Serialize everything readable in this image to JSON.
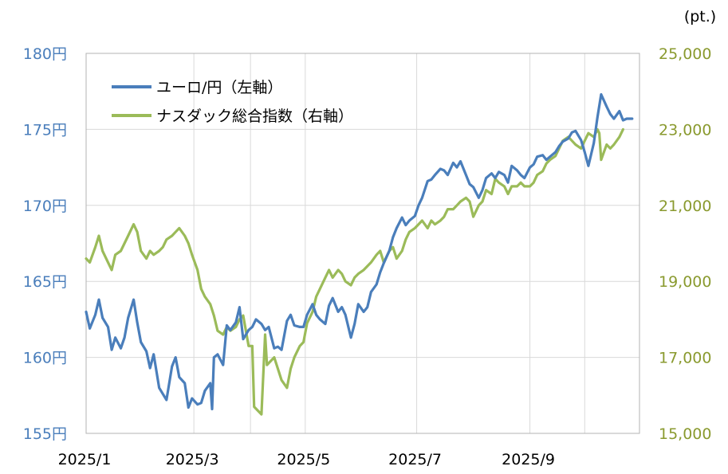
{
  "chart_data": {
    "type": "line",
    "right_unit_label": "(pt.)",
    "left_axis": {
      "min": 155,
      "max": 180,
      "step": 5,
      "tick_labels": [
        "155円",
        "160円",
        "165円",
        "170円",
        "175円",
        "180円"
      ]
    },
    "right_axis": {
      "min": 15000,
      "max": 25000,
      "step": 2000,
      "tick_labels": [
        "15,000",
        "17,000",
        "19,000",
        "21,000",
        "23,000",
        "25,000"
      ]
    },
    "x_axis": {
      "start": "2025-01-01",
      "end": "2025-10-31",
      "tick_labels": [
        "2025/1",
        "2025/3",
        "2025/5",
        "2025/7",
        "2025/9"
      ],
      "gridlines": [
        "2025-01-01",
        "2025-03-01",
        "2025-04-01",
        "2025-05-01",
        "2025-07-01",
        "2025-09-01",
        "2025-10-01",
        "2025-10-31"
      ]
    },
    "grid": true,
    "legend_position": "top-left",
    "series": [
      {
        "name": "ユーロ/円（左軸）",
        "axis": "left",
        "color": "#4a7ebb",
        "points": [
          [
            "2025-01-01",
            163.0
          ],
          [
            "2025-01-03",
            161.9
          ],
          [
            "2025-01-06",
            162.8
          ],
          [
            "2025-01-08",
            163.8
          ],
          [
            "2025-01-10",
            162.6
          ],
          [
            "2025-01-13",
            162.0
          ],
          [
            "2025-01-15",
            160.5
          ],
          [
            "2025-01-17",
            161.3
          ],
          [
            "2025-01-20",
            160.6
          ],
          [
            "2025-01-22",
            161.3
          ],
          [
            "2025-01-24",
            162.6
          ],
          [
            "2025-01-27",
            163.8
          ],
          [
            "2025-01-29",
            162.3
          ],
          [
            "2025-01-31",
            161.0
          ],
          [
            "2025-02-03",
            160.4
          ],
          [
            "2025-02-05",
            159.3
          ],
          [
            "2025-02-07",
            160.2
          ],
          [
            "2025-02-10",
            158.0
          ],
          [
            "2025-02-12",
            157.6
          ],
          [
            "2025-02-14",
            157.2
          ],
          [
            "2025-02-17",
            159.4
          ],
          [
            "2025-02-19",
            160.0
          ],
          [
            "2025-02-21",
            158.7
          ],
          [
            "2025-02-24",
            158.3
          ],
          [
            "2025-02-26",
            156.7
          ],
          [
            "2025-02-28",
            157.3
          ],
          [
            "2025-03-03",
            156.9
          ],
          [
            "2025-03-05",
            157.0
          ],
          [
            "2025-03-07",
            157.8
          ],
          [
            "2025-03-10",
            158.3
          ],
          [
            "2025-03-11",
            156.6
          ],
          [
            "2025-03-12",
            160.0
          ],
          [
            "2025-03-14",
            160.2
          ],
          [
            "2025-03-17",
            159.5
          ],
          [
            "2025-03-19",
            162.1
          ],
          [
            "2025-03-21",
            161.8
          ],
          [
            "2025-03-24",
            162.3
          ],
          [
            "2025-03-26",
            163.3
          ],
          [
            "2025-03-28",
            161.2
          ],
          [
            "2025-03-31",
            161.8
          ],
          [
            "2025-04-02",
            162.0
          ],
          [
            "2025-04-04",
            162.5
          ],
          [
            "2025-04-07",
            162.2
          ],
          [
            "2025-04-09",
            161.8
          ],
          [
            "2025-04-11",
            162.0
          ],
          [
            "2025-04-14",
            160.6
          ],
          [
            "2025-04-16",
            160.7
          ],
          [
            "2025-04-18",
            160.5
          ],
          [
            "2025-04-21",
            162.4
          ],
          [
            "2025-04-23",
            162.8
          ],
          [
            "2025-04-25",
            162.1
          ],
          [
            "2025-04-28",
            162.0
          ],
          [
            "2025-04-30",
            162.0
          ],
          [
            "2025-05-02",
            162.8
          ],
          [
            "2025-05-05",
            163.5
          ],
          [
            "2025-05-07",
            162.8
          ],
          [
            "2025-05-09",
            162.5
          ],
          [
            "2025-05-12",
            162.2
          ],
          [
            "2025-05-14",
            163.4
          ],
          [
            "2025-05-16",
            163.9
          ],
          [
            "2025-05-19",
            163.0
          ],
          [
            "2025-05-21",
            163.3
          ],
          [
            "2025-05-23",
            162.8
          ],
          [
            "2025-05-26",
            161.3
          ],
          [
            "2025-05-28",
            162.2
          ],
          [
            "2025-05-30",
            163.5
          ],
          [
            "2025-06-02",
            163.0
          ],
          [
            "2025-06-04",
            163.3
          ],
          [
            "2025-06-06",
            164.3
          ],
          [
            "2025-06-09",
            164.8
          ],
          [
            "2025-06-11",
            165.6
          ],
          [
            "2025-06-13",
            166.2
          ],
          [
            "2025-06-16",
            167.0
          ],
          [
            "2025-06-18",
            167.9
          ],
          [
            "2025-06-20",
            168.5
          ],
          [
            "2025-06-23",
            169.2
          ],
          [
            "2025-06-25",
            168.7
          ],
          [
            "2025-06-27",
            169.0
          ],
          [
            "2025-06-30",
            169.3
          ],
          [
            "2025-07-02",
            170.0
          ],
          [
            "2025-07-04",
            170.5
          ],
          [
            "2025-07-07",
            171.6
          ],
          [
            "2025-07-09",
            171.7
          ],
          [
            "2025-07-11",
            172.0
          ],
          [
            "2025-07-14",
            172.4
          ],
          [
            "2025-07-16",
            172.3
          ],
          [
            "2025-07-18",
            172.0
          ],
          [
            "2025-07-21",
            172.8
          ],
          [
            "2025-07-23",
            172.5
          ],
          [
            "2025-07-25",
            172.9
          ],
          [
            "2025-07-28",
            172.0
          ],
          [
            "2025-07-30",
            171.4
          ],
          [
            "2025-08-01",
            171.2
          ],
          [
            "2025-08-04",
            170.5
          ],
          [
            "2025-08-06",
            171.0
          ],
          [
            "2025-08-08",
            171.8
          ],
          [
            "2025-08-11",
            172.1
          ],
          [
            "2025-08-13",
            171.8
          ],
          [
            "2025-08-15",
            172.2
          ],
          [
            "2025-08-18",
            172.0
          ],
          [
            "2025-08-20",
            171.5
          ],
          [
            "2025-08-22",
            172.6
          ],
          [
            "2025-08-25",
            172.3
          ],
          [
            "2025-08-27",
            172.0
          ],
          [
            "2025-08-29",
            171.8
          ],
          [
            "2025-09-01",
            172.5
          ],
          [
            "2025-09-03",
            172.7
          ],
          [
            "2025-09-05",
            173.2
          ],
          [
            "2025-09-08",
            173.3
          ],
          [
            "2025-09-10",
            173.0
          ],
          [
            "2025-09-12",
            173.2
          ],
          [
            "2025-09-15",
            173.5
          ],
          [
            "2025-09-17",
            173.9
          ],
          [
            "2025-09-19",
            174.2
          ],
          [
            "2025-09-22",
            174.4
          ],
          [
            "2025-09-24",
            174.8
          ],
          [
            "2025-09-26",
            174.9
          ],
          [
            "2025-09-29",
            174.3
          ],
          [
            "2025-10-01",
            173.5
          ],
          [
            "2025-10-03",
            172.6
          ],
          [
            "2025-10-06",
            174.1
          ],
          [
            "2025-10-08",
            175.8
          ],
          [
            "2025-10-10",
            177.3
          ],
          [
            "2025-10-13",
            176.5
          ],
          [
            "2025-10-15",
            176.0
          ],
          [
            "2025-10-17",
            175.7
          ],
          [
            "2025-10-20",
            176.2
          ],
          [
            "2025-10-22",
            175.6
          ],
          [
            "2025-10-24",
            175.7
          ],
          [
            "2025-10-27",
            175.7
          ]
        ]
      },
      {
        "name": "ナスダック総合指数（右軸）",
        "axis": "right",
        "color": "#9bbb59",
        "points": [
          [
            "2025-01-01",
            19600
          ],
          [
            "2025-01-03",
            19500
          ],
          [
            "2025-01-06",
            19900
          ],
          [
            "2025-01-08",
            20200
          ],
          [
            "2025-01-10",
            19800
          ],
          [
            "2025-01-13",
            19500
          ],
          [
            "2025-01-15",
            19300
          ],
          [
            "2025-01-17",
            19700
          ],
          [
            "2025-01-20",
            19800
          ],
          [
            "2025-01-22",
            20000
          ],
          [
            "2025-01-24",
            20200
          ],
          [
            "2025-01-27",
            20500
          ],
          [
            "2025-01-29",
            20300
          ],
          [
            "2025-01-31",
            19800
          ],
          [
            "2025-02-03",
            19600
          ],
          [
            "2025-02-05",
            19800
          ],
          [
            "2025-02-07",
            19700
          ],
          [
            "2025-02-10",
            19800
          ],
          [
            "2025-02-12",
            19900
          ],
          [
            "2025-02-14",
            20100
          ],
          [
            "2025-02-17",
            20200
          ],
          [
            "2025-02-19",
            20300
          ],
          [
            "2025-02-21",
            20400
          ],
          [
            "2025-02-24",
            20200
          ],
          [
            "2025-02-26",
            20000
          ],
          [
            "2025-02-28",
            19700
          ],
          [
            "2025-03-03",
            19300
          ],
          [
            "2025-03-05",
            18800
          ],
          [
            "2025-03-07",
            18600
          ],
          [
            "2025-03-10",
            18400
          ],
          [
            "2025-03-12",
            18100
          ],
          [
            "2025-03-14",
            17700
          ],
          [
            "2025-03-17",
            17600
          ],
          [
            "2025-03-19",
            17800
          ],
          [
            "2025-03-21",
            17700
          ],
          [
            "2025-03-24",
            17800
          ],
          [
            "2025-03-26",
            18000
          ],
          [
            "2025-03-28",
            18100
          ],
          [
            "2025-03-31",
            17300
          ],
          [
            "2025-04-02",
            17300
          ],
          [
            "2025-04-03",
            15700
          ],
          [
            "2025-04-07",
            15500
          ],
          [
            "2025-04-09",
            17600
          ],
          [
            "2025-04-10",
            16800
          ],
          [
            "2025-04-14",
            17000
          ],
          [
            "2025-04-16",
            16700
          ],
          [
            "2025-04-18",
            16400
          ],
          [
            "2025-04-21",
            16200
          ],
          [
            "2025-04-23",
            16700
          ],
          [
            "2025-04-25",
            17000
          ],
          [
            "2025-04-28",
            17300
          ],
          [
            "2025-04-30",
            17400
          ],
          [
            "2025-05-02",
            17900
          ],
          [
            "2025-05-05",
            18200
          ],
          [
            "2025-05-07",
            18600
          ],
          [
            "2025-05-09",
            18800
          ],
          [
            "2025-05-12",
            19100
          ],
          [
            "2025-05-14",
            19300
          ],
          [
            "2025-05-16",
            19100
          ],
          [
            "2025-05-19",
            19300
          ],
          [
            "2025-05-21",
            19200
          ],
          [
            "2025-05-23",
            19000
          ],
          [
            "2025-05-26",
            18900
          ],
          [
            "2025-05-28",
            19100
          ],
          [
            "2025-05-30",
            19200
          ],
          [
            "2025-06-02",
            19300
          ],
          [
            "2025-06-04",
            19400
          ],
          [
            "2025-06-06",
            19500
          ],
          [
            "2025-06-09",
            19700
          ],
          [
            "2025-06-11",
            19800
          ],
          [
            "2025-06-13",
            19500
          ],
          [
            "2025-06-16",
            19800
          ],
          [
            "2025-06-18",
            19900
          ],
          [
            "2025-06-20",
            19600
          ],
          [
            "2025-06-23",
            19800
          ],
          [
            "2025-06-25",
            20100
          ],
          [
            "2025-06-27",
            20300
          ],
          [
            "2025-06-30",
            20400
          ],
          [
            "2025-07-02",
            20500
          ],
          [
            "2025-07-04",
            20600
          ],
          [
            "2025-07-07",
            20400
          ],
          [
            "2025-07-09",
            20600
          ],
          [
            "2025-07-11",
            20500
          ],
          [
            "2025-07-14",
            20600
          ],
          [
            "2025-07-16",
            20700
          ],
          [
            "2025-07-18",
            20900
          ],
          [
            "2025-07-21",
            20900
          ],
          [
            "2025-07-23",
            21000
          ],
          [
            "2025-07-25",
            21100
          ],
          [
            "2025-07-28",
            21200
          ],
          [
            "2025-07-30",
            21100
          ],
          [
            "2025-08-01",
            20700
          ],
          [
            "2025-08-04",
            21000
          ],
          [
            "2025-08-06",
            21100
          ],
          [
            "2025-08-08",
            21400
          ],
          [
            "2025-08-11",
            21300
          ],
          [
            "2025-08-13",
            21700
          ],
          [
            "2025-08-15",
            21600
          ],
          [
            "2025-08-18",
            21500
          ],
          [
            "2025-08-20",
            21300
          ],
          [
            "2025-08-22",
            21500
          ],
          [
            "2025-08-25",
            21500
          ],
          [
            "2025-08-27",
            21600
          ],
          [
            "2025-08-29",
            21500
          ],
          [
            "2025-09-01",
            21500
          ],
          [
            "2025-09-03",
            21600
          ],
          [
            "2025-09-05",
            21800
          ],
          [
            "2025-09-08",
            21900
          ],
          [
            "2025-09-10",
            22100
          ],
          [
            "2025-09-12",
            22200
          ],
          [
            "2025-09-15",
            22300
          ],
          [
            "2025-09-17",
            22500
          ],
          [
            "2025-09-19",
            22700
          ],
          [
            "2025-09-22",
            22800
          ],
          [
            "2025-09-24",
            22700
          ],
          [
            "2025-09-26",
            22600
          ],
          [
            "2025-09-29",
            22500
          ],
          [
            "2025-10-01",
            22700
          ],
          [
            "2025-10-03",
            22900
          ],
          [
            "2025-10-06",
            22800
          ],
          [
            "2025-10-08",
            23000
          ],
          [
            "2025-10-09",
            22900
          ],
          [
            "2025-10-10",
            22200
          ],
          [
            "2025-10-13",
            22600
          ],
          [
            "2025-10-15",
            22500
          ],
          [
            "2025-10-17",
            22600
          ],
          [
            "2025-10-20",
            22800
          ],
          [
            "2025-10-22",
            23000
          ]
        ]
      }
    ]
  }
}
